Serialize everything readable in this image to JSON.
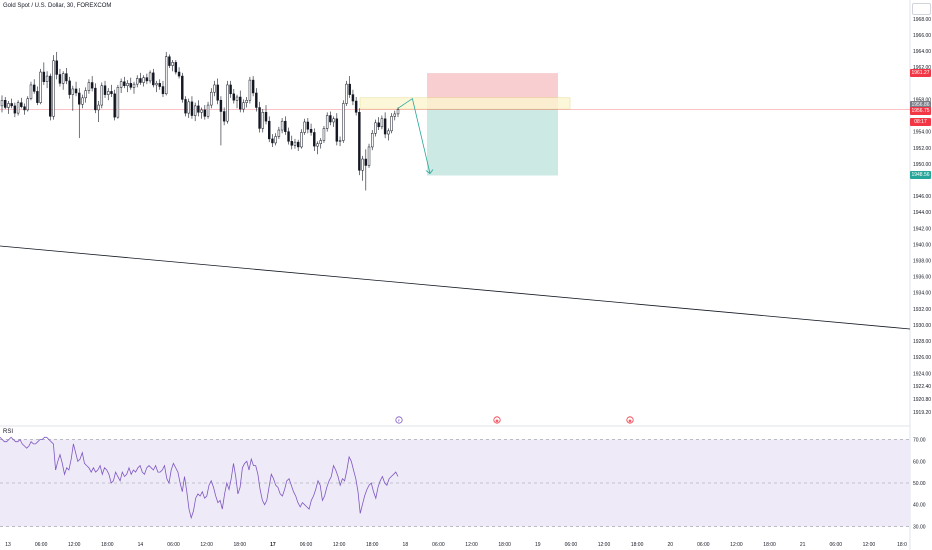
{
  "header": {
    "symbol_title": "Gold Spot / U.S. Dollar, 30, FOREXCOM"
  },
  "colors": {
    "up": "#ffffff",
    "down": "#131722",
    "stop_zone": "#f7c5c8",
    "target_zone": "#c6e8e0",
    "entry_band": "#fbf5cf",
    "projection_arrow": "#26a69a",
    "trendline": "#131722",
    "rsi_line": "#7e57c2",
    "rsi_band": "#efeaf8",
    "current_price_line": "#f23645"
  },
  "price_tags": [
    {
      "name": "stop-price-tag",
      "text": "1961.27",
      "color": "#f23645"
    },
    {
      "name": "entry-price-tag",
      "text": "1956.86",
      "color": "#787b86"
    },
    {
      "name": "current-price-tag",
      "text": "1956.75",
      "color": "#f23645"
    },
    {
      "name": "countdown-tag",
      "text": "08:17",
      "color": "#f23645"
    },
    {
      "name": "target-price-tag",
      "text": "1948.56",
      "color": "#26a69a"
    }
  ],
  "events": [
    {
      "name": "event-icon-f",
      "glyph": "F",
      "color": "#7e57c2"
    },
    {
      "name": "event-icon-us-1",
      "glyph": "◉",
      "color": "#f23645"
    },
    {
      "name": "event-icon-us-2",
      "glyph": "◉",
      "color": "#f23645"
    }
  ],
  "rsi": {
    "label": "RSI",
    "ticks": [
      "70.00",
      "60.00",
      "50.00",
      "40.00",
      "30.00"
    ]
  },
  "corner_button": {
    "icon": "settings-icon"
  },
  "chart_data": [
    {
      "type": "candlestick",
      "title": "Gold Spot / U.S. Dollar, 30, FOREXCOM",
      "ylim": [
        1918,
        1970
      ],
      "y_ticks": [
        "1968.00",
        "1966.00",
        "1964.00",
        "1962.00",
        "1958.00",
        "1954.00",
        "1952.00",
        "1950.00",
        "1946.00",
        "1944.00",
        "1942.00",
        "1940.00",
        "1938.00",
        "1936.00",
        "1934.00",
        "1932.00",
        "1930.00",
        "1928.00",
        "1926.00",
        "1924.00",
        "1922.40",
        "1920.80",
        "1919.20"
      ],
      "y_tick_values": [
        1968,
        1966,
        1964,
        1962,
        1958,
        1954,
        1952,
        1950,
        1946,
        1944,
        1942,
        1940,
        1938,
        1936,
        1934,
        1932,
        1930,
        1928,
        1926,
        1924,
        1922.4,
        1920.8,
        1919.2
      ],
      "x_ticks": [
        "13",
        "06:00",
        "12:00",
        "18:00",
        "14",
        "06:00",
        "12:00",
        "18:00",
        "17",
        "06:00",
        "12:00",
        "18:00",
        "18",
        "06:00",
        "12:00",
        "18:00",
        "19",
        "06:00",
        "12:00",
        "18:00",
        "20",
        "06:00",
        "12:00",
        "18:00",
        "21",
        "06:00",
        "12:00",
        "18:0"
      ],
      "x_tick_bold": [
        false,
        false,
        false,
        false,
        false,
        false,
        false,
        false,
        true,
        false,
        false,
        false,
        false,
        false,
        false,
        false,
        false,
        false,
        false,
        false,
        false,
        false,
        false,
        false,
        false,
        false,
        false,
        false
      ],
      "candles": [
        [
          1957.2,
          1958.5,
          1956.4,
          1957.9
        ],
        [
          1957.9,
          1958.3,
          1956.8,
          1957.0
        ],
        [
          1957.0,
          1957.8,
          1956.2,
          1957.5
        ],
        [
          1957.5,
          1958.1,
          1956.9,
          1957.2
        ],
        [
          1957.2,
          1957.6,
          1955.8,
          1956.3
        ],
        [
          1956.3,
          1957.9,
          1956.0,
          1957.6
        ],
        [
          1957.6,
          1958.2,
          1956.9,
          1957.1
        ],
        [
          1957.1,
          1957.5,
          1956.1,
          1956.7
        ],
        [
          1956.7,
          1958.4,
          1956.5,
          1958.1
        ],
        [
          1958.1,
          1960.2,
          1957.9,
          1959.8
        ],
        [
          1959.8,
          1960.5,
          1958.7,
          1959.0
        ],
        [
          1959.0,
          1959.6,
          1957.3,
          1957.6
        ],
        [
          1957.6,
          1961.8,
          1957.4,
          1961.4
        ],
        [
          1961.4,
          1962.6,
          1959.8,
          1960.2
        ],
        [
          1960.2,
          1961.5,
          1959.4,
          1960.9
        ],
        [
          1960.9,
          1961.2,
          1955.4,
          1955.9
        ],
        [
          1955.9,
          1963.5,
          1955.5,
          1962.8
        ],
        [
          1962.8,
          1963.9,
          1960.5,
          1961.1
        ],
        [
          1961.1,
          1961.8,
          1959.6,
          1960.0
        ],
        [
          1960.0,
          1961.5,
          1959.2,
          1961.2
        ],
        [
          1961.2,
          1961.9,
          1959.9,
          1960.3
        ],
        [
          1960.3,
          1960.8,
          1958.1,
          1958.6
        ],
        [
          1958.6,
          1959.7,
          1956.6,
          1959.3
        ],
        [
          1959.3,
          1960.2,
          1958.4,
          1958.8
        ],
        [
          1958.8,
          1959.4,
          1953.2,
          1957.4
        ],
        [
          1957.4,
          1958.6,
          1956.9,
          1958.2
        ],
        [
          1958.2,
          1959.5,
          1957.6,
          1959.1
        ],
        [
          1959.1,
          1960.5,
          1958.7,
          1960.1
        ],
        [
          1960.1,
          1960.9,
          1959.0,
          1959.4
        ],
        [
          1959.4,
          1960.0,
          1956.3,
          1956.7
        ],
        [
          1956.7,
          1957.8,
          1955.2,
          1957.3
        ],
        [
          1957.3,
          1960.1,
          1956.9,
          1959.7
        ],
        [
          1959.7,
          1960.3,
          1958.2,
          1958.6
        ],
        [
          1958.6,
          1959.4,
          1957.9,
          1959.0
        ],
        [
          1959.0,
          1959.8,
          1958.3,
          1958.7
        ],
        [
          1958.7,
          1959.2,
          1955.4,
          1955.8
        ],
        [
          1955.8,
          1959.8,
          1955.6,
          1959.5
        ],
        [
          1959.5,
          1960.6,
          1958.8,
          1960.2
        ],
        [
          1960.2,
          1960.8,
          1959.4,
          1959.7
        ],
        [
          1959.7,
          1960.4,
          1958.9,
          1960.0
        ],
        [
          1960.0,
          1960.7,
          1959.2,
          1959.5
        ],
        [
          1959.5,
          1960.2,
          1958.7,
          1959.9
        ],
        [
          1959.9,
          1961.0,
          1959.5,
          1960.6
        ],
        [
          1960.6,
          1961.3,
          1959.8,
          1960.1
        ],
        [
          1960.1,
          1961.0,
          1959.6,
          1960.7
        ],
        [
          1960.7,
          1961.2,
          1959.9,
          1960.3
        ],
        [
          1960.3,
          1961.6,
          1960.0,
          1961.3
        ],
        [
          1961.3,
          1961.8,
          1959.5,
          1959.8
        ],
        [
          1959.8,
          1960.3,
          1958.9,
          1960.0
        ],
        [
          1960.0,
          1960.5,
          1959.2,
          1959.6
        ],
        [
          1959.6,
          1960.3,
          1958.3,
          1958.7
        ],
        [
          1958.7,
          1963.9,
          1958.5,
          1963.3
        ],
        [
          1963.3,
          1963.6,
          1961.9,
          1962.2
        ],
        [
          1962.2,
          1962.9,
          1961.5,
          1962.6
        ],
        [
          1962.6,
          1962.9,
          1961.1,
          1961.4
        ],
        [
          1961.4,
          1962.0,
          1960.6,
          1960.9
        ],
        [
          1960.9,
          1961.3,
          1957.6,
          1958.0
        ],
        [
          1958.0,
          1958.4,
          1955.9,
          1956.3
        ],
        [
          1956.3,
          1958.1,
          1955.7,
          1957.7
        ],
        [
          1957.7,
          1958.4,
          1955.6,
          1956.0
        ],
        [
          1956.0,
          1957.6,
          1955.3,
          1957.2
        ],
        [
          1957.2,
          1957.9,
          1955.9,
          1956.4
        ],
        [
          1956.4,
          1957.0,
          1955.6,
          1956.7
        ],
        [
          1956.7,
          1957.3,
          1955.5,
          1955.9
        ],
        [
          1955.9,
          1957.7,
          1955.6,
          1957.3
        ],
        [
          1957.3,
          1959.4,
          1956.9,
          1958.9
        ],
        [
          1958.9,
          1960.3,
          1958.4,
          1959.8
        ],
        [
          1959.8,
          1960.6,
          1957.4,
          1957.9
        ],
        [
          1957.9,
          1958.4,
          1952.3,
          1956.5
        ],
        [
          1956.5,
          1957.0,
          1954.8,
          1955.3
        ],
        [
          1955.3,
          1960.3,
          1955.0,
          1959.8
        ],
        [
          1959.8,
          1960.3,
          1958.2,
          1958.7
        ],
        [
          1958.7,
          1959.3,
          1957.5,
          1957.9
        ],
        [
          1957.9,
          1958.6,
          1956.9,
          1958.3
        ],
        [
          1958.3,
          1959.1,
          1956.4,
          1956.8
        ],
        [
          1956.8,
          1958.0,
          1956.4,
          1957.6
        ],
        [
          1957.6,
          1958.3,
          1957.0,
          1957.9
        ],
        [
          1957.9,
          1960.8,
          1957.5,
          1960.4
        ],
        [
          1960.4,
          1960.9,
          1958.4,
          1958.8
        ],
        [
          1958.8,
          1959.4,
          1956.5,
          1957.0
        ],
        [
          1957.0,
          1957.7,
          1953.9,
          1954.4
        ],
        [
          1954.4,
          1956.8,
          1953.9,
          1956.4
        ],
        [
          1956.4,
          1957.3,
          1954.9,
          1955.3
        ],
        [
          1955.3,
          1955.9,
          1952.7,
          1953.1
        ],
        [
          1953.1,
          1953.7,
          1952.1,
          1952.6
        ],
        [
          1952.6,
          1953.8,
          1952.3,
          1953.4
        ],
        [
          1953.4,
          1954.6,
          1953.1,
          1954.2
        ],
        [
          1954.2,
          1955.7,
          1953.8,
          1955.3
        ],
        [
          1955.3,
          1955.9,
          1953.6,
          1954.0
        ],
        [
          1954.0,
          1954.5,
          1952.4,
          1952.8
        ],
        [
          1952.8,
          1953.5,
          1951.8,
          1952.3
        ],
        [
          1952.3,
          1953.1,
          1951.9,
          1952.7
        ],
        [
          1952.7,
          1953.0,
          1951.6,
          1952.1
        ],
        [
          1952.1,
          1954.3,
          1951.9,
          1953.9
        ],
        [
          1953.9,
          1955.6,
          1953.6,
          1955.2
        ],
        [
          1955.2,
          1955.7,
          1953.8,
          1954.3
        ],
        [
          1954.3,
          1955.0,
          1953.5,
          1953.9
        ],
        [
          1953.9,
          1954.4,
          1951.6,
          1952.2
        ],
        [
          1952.2,
          1952.8,
          1951.2,
          1952.5
        ],
        [
          1952.5,
          1953.2,
          1951.9,
          1952.9
        ],
        [
          1952.9,
          1954.7,
          1952.6,
          1954.4
        ],
        [
          1954.4,
          1956.4,
          1954.0,
          1956.0
        ],
        [
          1956.0,
          1956.5,
          1954.8,
          1955.2
        ],
        [
          1955.2,
          1955.9,
          1954.6,
          1955.6
        ],
        [
          1955.6,
          1956.3,
          1952.3,
          1952.8
        ],
        [
          1952.8,
          1953.4,
          1952.2,
          1952.9
        ],
        [
          1952.9,
          1957.9,
          1952.6,
          1957.5
        ],
        [
          1957.5,
          1960.3,
          1957.2,
          1959.9
        ],
        [
          1959.9,
          1960.9,
          1958.2,
          1958.6
        ],
        [
          1958.6,
          1959.2,
          1957.3,
          1957.8
        ],
        [
          1957.8,
          1958.3,
          1956.0,
          1956.4
        ],
        [
          1956.4,
          1956.9,
          1948.6,
          1949.2
        ],
        [
          1949.2,
          1951.0,
          1947.9,
          1950.6
        ],
        [
          1950.6,
          1951.8,
          1946.7,
          1949.8
        ],
        [
          1949.8,
          1952.5,
          1949.5,
          1952.1
        ],
        [
          1952.1,
          1954.2,
          1951.7,
          1953.8
        ],
        [
          1953.8,
          1955.5,
          1953.4,
          1955.1
        ],
        [
          1955.1,
          1955.8,
          1954.2,
          1954.6
        ],
        [
          1954.6,
          1956.0,
          1954.3,
          1955.6
        ],
        [
          1955.6,
          1956.4,
          1953.2,
          1953.7
        ],
        [
          1953.7,
          1954.4,
          1952.9,
          1954.1
        ],
        [
          1954.1,
          1956.3,
          1953.8,
          1955.9
        ],
        [
          1955.9,
          1956.6,
          1955.4,
          1956.2
        ],
        [
          1956.2,
          1957.0,
          1955.8,
          1956.75
        ]
      ],
      "current_price": 1956.75,
      "long_short_position": {
        "entry": 1956.86,
        "stop": 1961.27,
        "target": 1948.56
      },
      "entry_zone": [
        1956.8,
        1958.2
      ],
      "trendline": [
        [
          0,
          1939.8
        ],
        [
          1,
          1929.5
        ]
      ],
      "projection": [
        [
          0,
          1956.9
        ],
        [
          0.45,
          1958.1
        ],
        [
          1,
          1948.8
        ]
      ]
    },
    {
      "type": "line",
      "title": "RSI",
      "ylim": [
        27,
        73
      ],
      "y_ticks": [
        70,
        60,
        50,
        40,
        30
      ],
      "band": [
        30,
        70
      ],
      "values": [
        71,
        70,
        69,
        69,
        70,
        71,
        70,
        69,
        69,
        70,
        68,
        67,
        66,
        67,
        69,
        68,
        68,
        69,
        70,
        70,
        71,
        71,
        70,
        69,
        68,
        56,
        60,
        63,
        59,
        54,
        57,
        56,
        61,
        68,
        64,
        60,
        61,
        64,
        59,
        58,
        57,
        55,
        57,
        55,
        56,
        58,
        54,
        57,
        56,
        54,
        50,
        51,
        55,
        53,
        51,
        55,
        53,
        54,
        57,
        54,
        56,
        55,
        57,
        58,
        55,
        54,
        57,
        58,
        57,
        56,
        58,
        55,
        55,
        56,
        58,
        52,
        50,
        56,
        59,
        57,
        55,
        50,
        46,
        53,
        46,
        38,
        34,
        37,
        43,
        45,
        44,
        46,
        43,
        44,
        49,
        51,
        48,
        44,
        41,
        42,
        38,
        45,
        50,
        47,
        52,
        59,
        53,
        45,
        48,
        57,
        59,
        60,
        56,
        61,
        58,
        58,
        54,
        47,
        42,
        40,
        42,
        48,
        54,
        52,
        49,
        48,
        45,
        44,
        47,
        51,
        52,
        49,
        46,
        44,
        41,
        39,
        41,
        40,
        39,
        38,
        42,
        44,
        47,
        51,
        49,
        42,
        44,
        48,
        51,
        53,
        58,
        56,
        53,
        49,
        52,
        51,
        56,
        62,
        60,
        56,
        52,
        46,
        36,
        40,
        44,
        47,
        49,
        50,
        46,
        43,
        48,
        51,
        53,
        50,
        49,
        52,
        53,
        54,
        55,
        53
      ]
    }
  ]
}
